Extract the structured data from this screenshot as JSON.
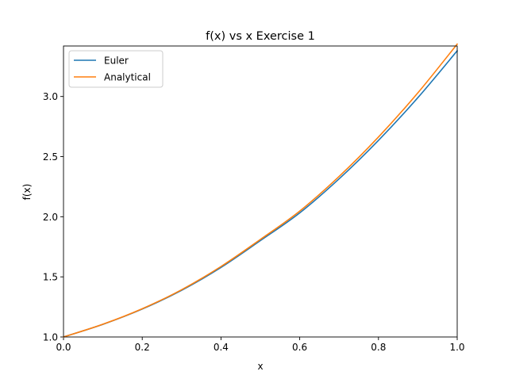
{
  "chart_data": {
    "type": "line",
    "title": "f(x) vs x Exercise 1",
    "xlabel": "x",
    "ylabel": "f(x)",
    "xlim": [
      0.0,
      1.0
    ],
    "ylim": [
      1.0,
      3.42
    ],
    "xticks": [
      {
        "value": 0.0,
        "label": "0.0"
      },
      {
        "value": 0.2,
        "label": "0.2"
      },
      {
        "value": 0.4,
        "label": "0.4"
      },
      {
        "value": 0.6,
        "label": "0.6"
      },
      {
        "value": 0.8,
        "label": "0.8"
      },
      {
        "value": 1.0,
        "label": "1.0"
      }
    ],
    "yticks": [
      {
        "value": 1.0,
        "label": "1.0"
      },
      {
        "value": 1.5,
        "label": "1.5"
      },
      {
        "value": 2.0,
        "label": "2.0"
      },
      {
        "value": 2.5,
        "label": "2.5"
      },
      {
        "value": 3.0,
        "label": "3.0"
      }
    ],
    "grid": false,
    "legend": "upper-left",
    "x": [
      0.0,
      0.1,
      0.2,
      0.3,
      0.4,
      0.5,
      0.6,
      0.7,
      0.8,
      0.9,
      1.0
    ],
    "series": [
      {
        "name": "Euler",
        "color": "#1f77b4",
        "values": [
          1.0,
          1.105,
          1.232,
          1.388,
          1.578,
          1.801,
          2.032,
          2.315,
          2.635,
          2.99,
          3.38
        ]
      },
      {
        "name": "Analytical",
        "color": "#ff7f0e",
        "values": [
          1.0,
          1.106,
          1.235,
          1.393,
          1.586,
          1.811,
          2.047,
          2.335,
          2.663,
          3.03,
          3.436
        ]
      }
    ]
  }
}
